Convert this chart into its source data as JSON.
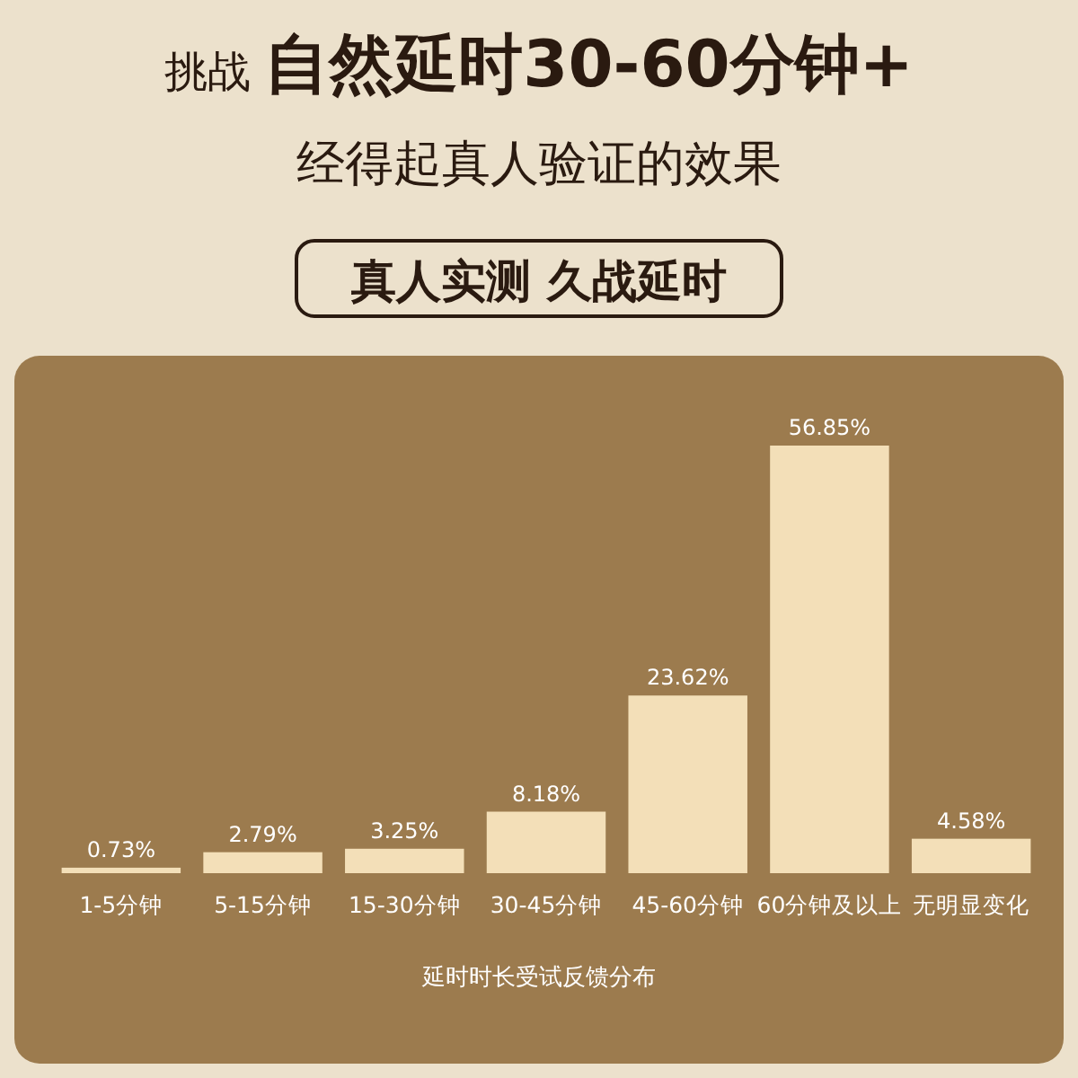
{
  "chart_data": {
    "type": "bar",
    "title": "挑战 **自然延时30-60分钟+**",
    "subtitle": "经得起真人验证的效果",
    "annotations": [
      "真人实测 久战延时"
    ],
    "categories": [
      "1-5分钟",
      "5-15分钟",
      "15-30分钟",
      "30-45分钟",
      "45-60分钟",
      "60分钟及以上",
      "无明显变化"
    ],
    "values": [
      0.73,
      2.79,
      3.25,
      8.18,
      23.62,
      56.85,
      4.58
    ],
    "value_labels": [
      "0.73%",
      "2.79%",
      "3.25%",
      "8.18%",
      "23.62%",
      "56.85%",
      "4.58%"
    ],
    "color": "#f3dfb8",
    "xlabel": "延时时长受试反馈分布"
  }
}
